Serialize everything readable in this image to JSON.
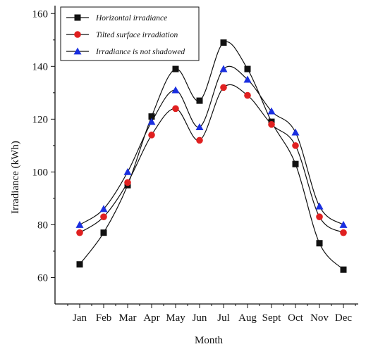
{
  "chart_data": {
    "type": "line",
    "xlabel": "Month",
    "ylabel": "Irradiance (kWh)",
    "categories": [
      "Jan",
      "Feb",
      "Mar",
      "Apr",
      "May",
      "Jun",
      "Jul",
      "Aug",
      "Sept",
      "Oct",
      "Nov",
      "Dec"
    ],
    "ylim": [
      50,
      163
    ],
    "yticks": [
      60,
      80,
      100,
      120,
      140,
      160
    ],
    "grid": false,
    "legend_position": "top-left",
    "smooth": true,
    "series": [
      {
        "name": "Horizontal irradiance",
        "marker": "square",
        "color": "#111111",
        "values": [
          65,
          77,
          95,
          121,
          139,
          127,
          149,
          139,
          119,
          103,
          73,
          63
        ]
      },
      {
        "name": "Tilted surface irradiation",
        "marker": "circle",
        "color": "#e02020",
        "values": [
          77,
          83,
          96,
          114,
          124,
          112,
          132,
          129,
          118,
          110,
          83,
          77
        ]
      },
      {
        "name": "Irradiance is not shadowed",
        "marker": "triangle",
        "color": "#1a2fe0",
        "values": [
          80,
          86,
          100,
          119,
          131,
          117,
          139,
          135,
          123,
          115,
          87,
          80
        ]
      }
    ]
  }
}
